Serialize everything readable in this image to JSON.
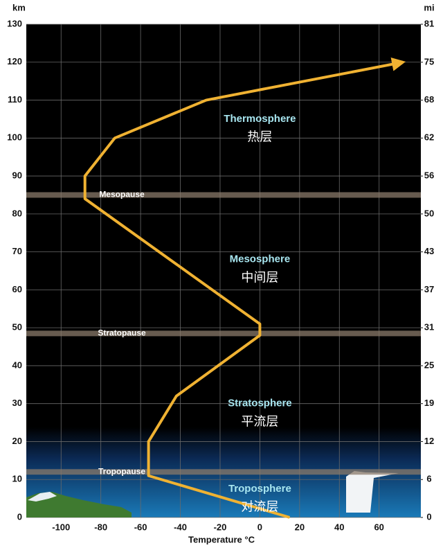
{
  "chart_data": {
    "type": "line",
    "y_label": "km",
    "y2_label": "mi",
    "x_label": "Temperature °C",
    "x": [
      15,
      -56,
      -56,
      -42,
      0,
      0,
      -88,
      -88,
      -73,
      -27,
      72
    ],
    "values": [
      0,
      11,
      20,
      32,
      48,
      51,
      84,
      90,
      100,
      110,
      120
    ],
    "color": "#f0b232",
    "xlim": [
      -117.5,
      81
    ],
    "xticks": [
      -100,
      -80,
      -60,
      -40,
      -20,
      0,
      20,
      40,
      60
    ],
    "ylim": [
      0,
      130
    ],
    "yticks": [
      0,
      10,
      20,
      30,
      40,
      50,
      60,
      70,
      80,
      90,
      100,
      110,
      120,
      130
    ],
    "y2lim": [
      0,
      80.78
    ],
    "y2ticks": [
      0,
      {
        "value": 6.21,
        "label": "6"
      },
      {
        "value": 12.43,
        "label": "12"
      },
      {
        "value": 18.64,
        "label": "19"
      },
      {
        "value": 24.85,
        "label": "25"
      },
      {
        "value": 31.07,
        "label": "31"
      },
      {
        "value": 37.28,
        "label": "37"
      },
      {
        "value": 43.5,
        "label": "43"
      },
      {
        "value": 49.71,
        "label": "50"
      },
      {
        "value": 55.92,
        "label": "56"
      },
      {
        "value": 62.14,
        "label": "62"
      },
      {
        "value": 68.35,
        "label": "68"
      },
      {
        "value": 74.56,
        "label": "75"
      },
      {
        "value": 80.78,
        "label": "81"
      }
    ],
    "grid": true,
    "pauses": [
      {
        "label": "Tropopause",
        "y": 12
      },
      {
        "label": "Stratopause",
        "y": 48.5
      },
      {
        "label": "Mesopause",
        "y": 85
      }
    ],
    "regions": [
      {
        "name": "Troposphere",
        "name_zh": "对流层",
        "x": 0,
        "y": 7.5
      },
      {
        "name": "Stratosphere",
        "name_zh": "平流层",
        "x": 0,
        "y": 30
      },
      {
        "name": "Mesosphere",
        "name_zh": "中间层",
        "x": 0,
        "y": 68
      },
      {
        "name": "Thermosphere",
        "name_zh": "热层",
        "x": 0,
        "y": 105
      }
    ]
  }
}
